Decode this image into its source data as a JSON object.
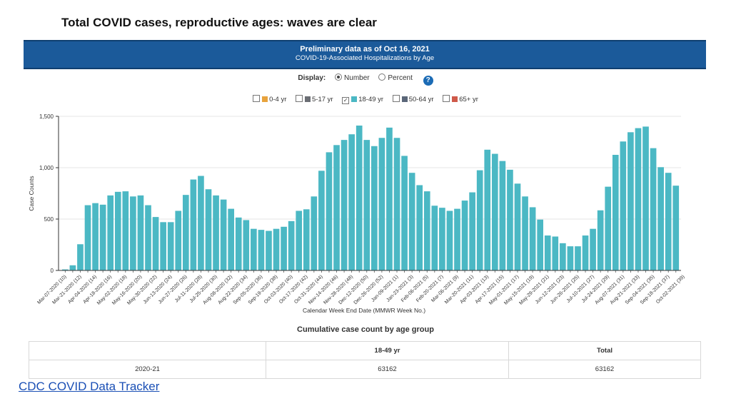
{
  "slide_title": "Total COVID cases, reproductive ages: waves are clear",
  "banner": {
    "title": "Preliminary data as of Oct 16, 2021",
    "subtitle": "COVID-19-Associated Hospitalizations by Age"
  },
  "display": {
    "label": "Display:",
    "options": [
      "Number",
      "Percent"
    ],
    "selected": "Number",
    "help_icon": "question-icon",
    "help_glyph": "?"
  },
  "legend": {
    "items": [
      {
        "label": "0-4 yr",
        "color": "#e8a33d",
        "checked": false
      },
      {
        "label": "5-17 yr",
        "color": "#6b6e74",
        "checked": false
      },
      {
        "label": "18-49 yr",
        "color": "#4bb8c4",
        "checked": true
      },
      {
        "label": "50-64 yr",
        "color": "#5b6779",
        "checked": false
      },
      {
        "label": "65+ yr",
        "color": "#cf5a4a",
        "checked": false
      }
    ]
  },
  "chart_data": {
    "type": "bar",
    "title": "COVID-19-Associated Hospitalizations by Age",
    "series": [
      {
        "name": "18-49 yr",
        "color": "#4bb8c4",
        "values": [
          10,
          50,
          255,
          635,
          655,
          640,
          730,
          765,
          770,
          720,
          730,
          635,
          520,
          470,
          470,
          580,
          735,
          885,
          920,
          790,
          730,
          690,
          600,
          515,
          490,
          405,
          395,
          385,
          405,
          425,
          480,
          580,
          595,
          720,
          970,
          1150,
          1220,
          1270,
          1325,
          1410,
          1270,
          1210,
          1290,
          1390,
          1290,
          1115,
          950,
          830,
          770,
          630,
          610,
          580,
          600,
          680,
          760,
          975,
          1175,
          1135,
          1065,
          980,
          845,
          720,
          615,
          495,
          340,
          330,
          265,
          235,
          235,
          340,
          405,
          585,
          815,
          1125,
          1255,
          1345,
          1385,
          1400,
          1190,
          1005,
          950,
          825
        ]
      }
    ],
    "xlabel": "Calendar Week End Date (MMWR Week No.)",
    "ylabel": "Case Counts",
    "ylim": [
      0,
      1500
    ],
    "yticks": [
      0,
      500,
      1000,
      1500
    ],
    "ytick_labels": [
      "0",
      "500",
      "1,000",
      "1,500"
    ],
    "xtick_labels": [
      "Mar-07-2020 (10)",
      "Mar-21-2020 (12)",
      "Apr-04-2020 (14)",
      "Apr-18-2020 (16)",
      "May-02-2020 (18)",
      "May-16-2020 (20)",
      "May-30-2020 (22)",
      "Jun-13-2020 (24)",
      "Jun-27-2020 (26)",
      "Jul-11-2020 (28)",
      "Jul-25-2020 (30)",
      "Aug-08-2020 (32)",
      "Aug-22-2020 (34)",
      "Sep-05-2020 (36)",
      "Sep-19-2020 (38)",
      "Oct-03-2020 (40)",
      "Oct-17-2020 (42)",
      "Oct-31-2020 (44)",
      "Nov-14-2020 (46)",
      "Nov-28-2020 (48)",
      "Dec-12-2020 (50)",
      "Dec-26-2020 (52)",
      "Jan-09-2021 (1)",
      "Jan-23-2021 (3)",
      "Feb-06-2021 (5)",
      "Feb-20-2021 (7)",
      "Mar-06-2021 (9)",
      "Mar-20-2021 (11)",
      "Apr-03-2021 (13)",
      "Apr-17-2021 (15)",
      "May-01-2021 (17)",
      "May-15-2021 (19)",
      "May-29-2021 (21)",
      "Jun-12-2021 (23)",
      "Jun-26-2021 (25)",
      "Jul-10-2021 (27)",
      "Jul-24-2021 (29)",
      "Aug-07-2021 (31)",
      "Aug-21-2021 (33)",
      "Sep-04-2021 (35)",
      "Sep-18-2021 (37)",
      "Oct-02-2021 (39)"
    ],
    "xtick_every": 2,
    "grid": true
  },
  "cumulative": {
    "title": "Cumulative case count by age group",
    "headers": [
      "",
      "18-49 yr",
      "Total"
    ],
    "rows": [
      [
        "2020-21",
        "63162",
        "63162"
      ]
    ]
  },
  "footer_link": "CDC COVID Data Tracker"
}
